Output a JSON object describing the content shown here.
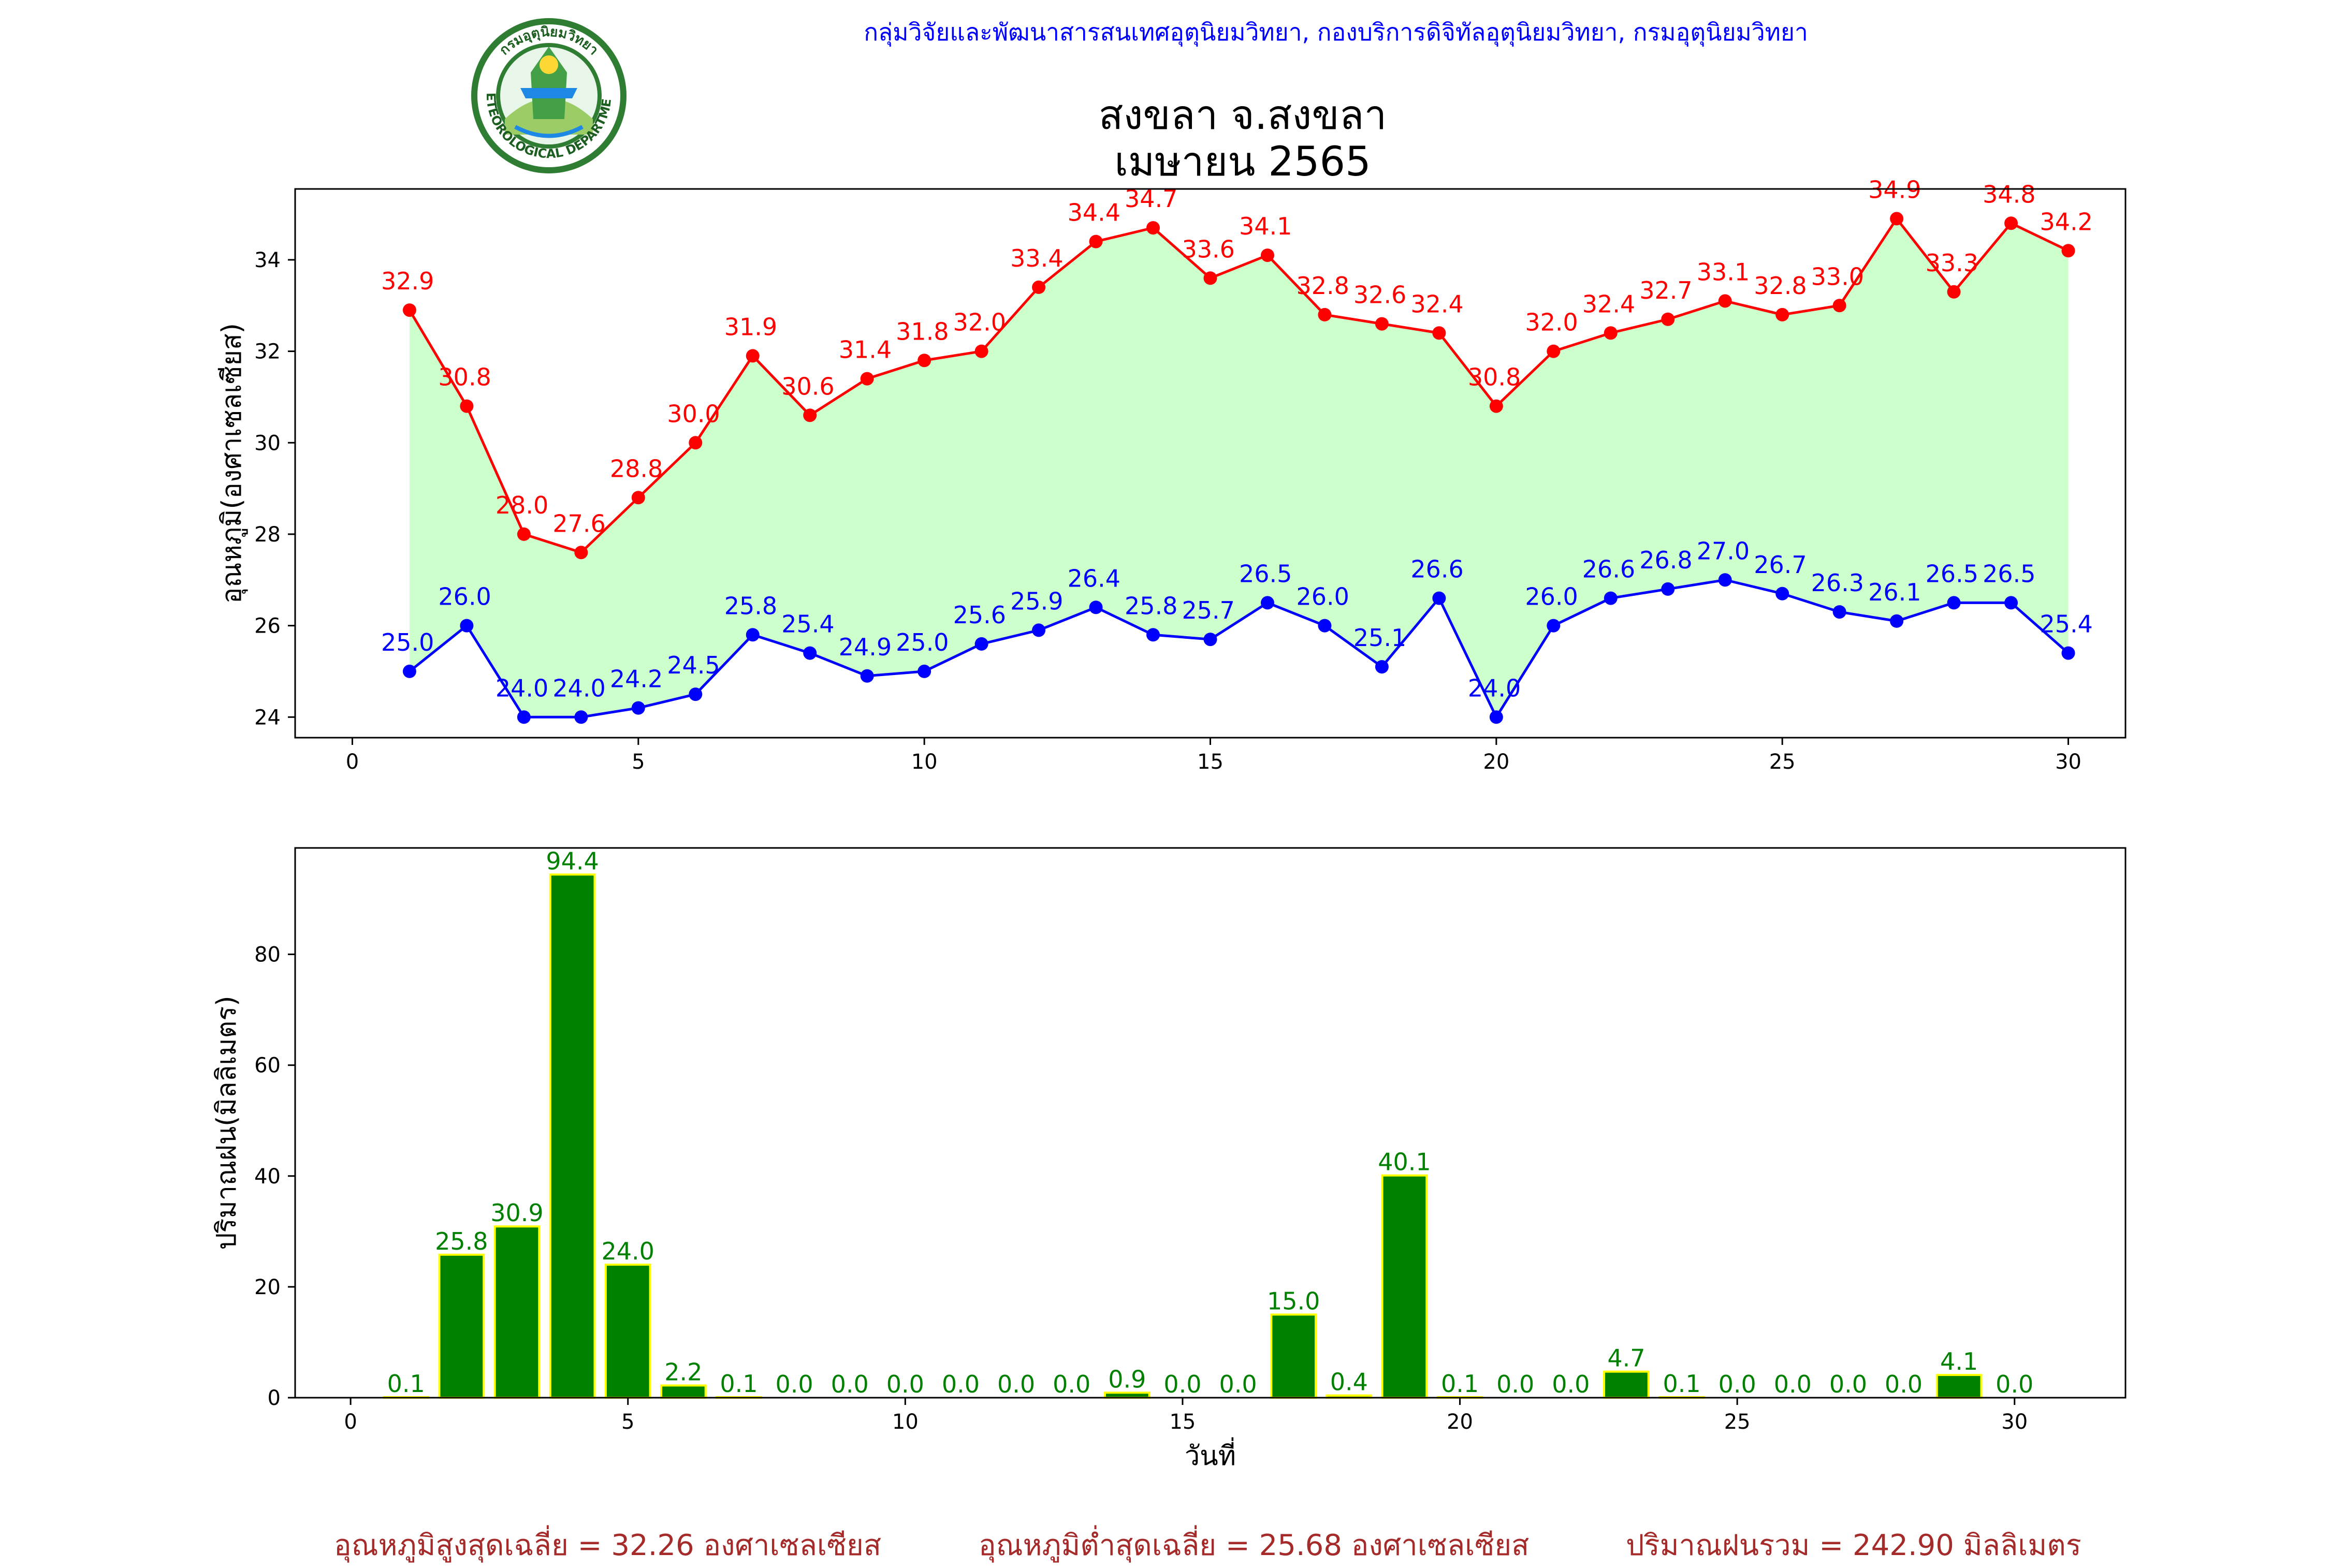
{
  "header": {
    "org": "กลุ่มวิจัยและพัฒนาสารสนเทศอุตุนิยมวิทยา, กองบริการดิจิทัลอุตุนิยมวิทยา, กรมอุตุนิยมวิทยา",
    "title_line1": "สงขลา จ.สงขลา",
    "title_line2": "เมษายน 2565",
    "logo_text": "METEOROLOGICAL DEPARTMENT",
    "logo_text_top": "กรมอุตุนิยมวิทยา"
  },
  "footer": {
    "avg_max": "อุณหภูมิสูงสุดเฉลี่ย = 32.26 องศาเซลเซียส",
    "avg_min": "อุณหภูมิต่ำสุดเฉลี่ย = 25.68 องศาเซลเซียส",
    "total_rain": "ปริมาณฝนรวม = 242.90 มิลลิเมตร"
  },
  "colors": {
    "max": "#ff0000",
    "min": "#0000ff",
    "fill": "#ccffcc",
    "bar": "#008000",
    "bar_edge": "#ffff00",
    "bar_label": "#008000"
  },
  "chart_data": [
    {
      "type": "line",
      "ylabel": "อุณหภูมิ(องศาเซลเซียส)",
      "xlim": [
        -1,
        31
      ],
      "ylim": [
        23.55,
        35.55
      ],
      "xticks": [
        0,
        5,
        10,
        15,
        20,
        25,
        30
      ],
      "yticks": [
        24,
        26,
        28,
        30,
        32,
        34
      ],
      "x": [
        1,
        2,
        3,
        4,
        5,
        6,
        7,
        8,
        9,
        10,
        11,
        12,
        13,
        14,
        15,
        16,
        17,
        18,
        19,
        20,
        21,
        22,
        23,
        24,
        25,
        26,
        27,
        28,
        29,
        30
      ],
      "series": [
        {
          "key": "max",
          "values": [
            32.9,
            30.8,
            28.0,
            27.6,
            28.8,
            30.0,
            31.9,
            30.6,
            31.4,
            31.8,
            32.0,
            33.4,
            34.4,
            34.7,
            33.6,
            34.1,
            32.8,
            32.6,
            32.4,
            30.8,
            32.0,
            32.4,
            32.7,
            33.1,
            32.8,
            33.0,
            34.9,
            33.3,
            34.8,
            34.2
          ]
        },
        {
          "key": "min",
          "values": [
            25.0,
            26.0,
            24.0,
            24.0,
            24.2,
            24.5,
            25.8,
            25.4,
            24.9,
            25.0,
            25.6,
            25.9,
            26.4,
            25.8,
            25.7,
            26.5,
            26.0,
            25.1,
            26.6,
            24.0,
            26.0,
            26.6,
            26.8,
            27.0,
            26.7,
            26.3,
            26.1,
            26.5,
            26.5,
            25.4
          ]
        }
      ],
      "fill_between": true
    },
    {
      "type": "bar",
      "ylabel": "ปริมาณฝน(มิลลิเมตร)",
      "xlabel": "วันที่",
      "xlim": [
        -1,
        32
      ],
      "ylim": [
        0,
        99.2
      ],
      "xticks": [
        0,
        5,
        10,
        15,
        20,
        25,
        30
      ],
      "yticks": [
        0,
        20,
        40,
        60,
        80
      ],
      "x": [
        1,
        2,
        3,
        4,
        5,
        6,
        7,
        8,
        9,
        10,
        11,
        12,
        13,
        14,
        15,
        16,
        17,
        18,
        19,
        20,
        21,
        22,
        23,
        24,
        25,
        26,
        27,
        28,
        29,
        30
      ],
      "values": [
        0.1,
        25.8,
        30.9,
        94.4,
        24.0,
        2.2,
        0.1,
        0.0,
        0.0,
        0.0,
        0.0,
        0.0,
        0.0,
        0.9,
        0.0,
        0.0,
        15.0,
        0.4,
        40.1,
        0.1,
        0.0,
        0.0,
        4.7,
        0.1,
        0.0,
        0.0,
        0.0,
        0.0,
        4.1,
        0.0
      ]
    }
  ]
}
